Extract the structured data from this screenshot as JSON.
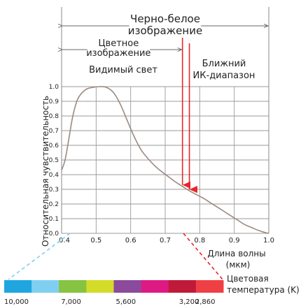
{
  "chart_data": {
    "type": "line",
    "xlabel": "Длина волны\n(мкм)",
    "ylabel": "Относительная чувствительность",
    "xlim": [
      0.4,
      1.0
    ],
    "ylim": [
      0.0,
      1.0
    ],
    "x_ticks": [
      "0.4",
      "0.5",
      "0.6",
      "0.7",
      "0.8",
      "0.9",
      "1.0"
    ],
    "y_ticks": [
      "0.0",
      "0.1",
      "0.2",
      "0.3",
      "0.4",
      "0.5",
      "0.6",
      "0.7",
      "0.8",
      "0.9",
      "1.0"
    ],
    "grid": true,
    "series": [
      {
        "x": [
          0.4,
          0.41,
          0.42,
          0.43,
          0.44,
          0.45,
          0.47,
          0.49,
          0.51,
          0.53,
          0.55,
          0.57,
          0.59,
          0.61,
          0.63,
          0.65,
          0.67,
          0.69,
          0.71,
          0.73,
          0.75,
          0.77,
          0.79,
          0.81,
          0.83,
          0.85,
          0.87,
          0.89,
          0.91,
          0.93,
          0.95,
          0.97,
          0.99,
          1.0
        ],
        "y": [
          0.43,
          0.5,
          0.63,
          0.77,
          0.87,
          0.93,
          0.98,
          0.995,
          1.0,
          0.995,
          0.96,
          0.88,
          0.77,
          0.66,
          0.57,
          0.51,
          0.46,
          0.42,
          0.385,
          0.35,
          0.32,
          0.29,
          0.265,
          0.24,
          0.21,
          0.18,
          0.15,
          0.12,
          0.09,
          0.06,
          0.04,
          0.02,
          0.005,
          0.0
        ]
      }
    ],
    "ranges": [
      {
        "label_lines": [
          "Черно-белое",
          "изображение"
        ],
        "from": 0.4,
        "to": 1.0
      },
      {
        "label_lines": [
          "Цветное",
          "изображение"
        ],
        "from": 0.4,
        "to": 0.75
      }
    ],
    "region_labels": {
      "visible": "Видимый свет",
      "near_ir": [
        "Ближний",
        "ИК-диапазон"
      ]
    },
    "markers": [
      {
        "x": 0.75,
        "color": "#e8252b"
      },
      {
        "x": 0.77,
        "color": "#e8252b"
      }
    ],
    "color_temperature": {
      "label_lines": [
        "Цветовая",
        "температура (K)"
      ],
      "colors": [
        "#1fa6e0",
        "#7fd0f0",
        "#86c341",
        "#d4dc2a",
        "#8b4a9c",
        "#dd1a84",
        "#c01a3a",
        "#ee4044"
      ],
      "tick_labels": [
        "10,000",
        "7,000",
        "5,600",
        "3,200",
        "2,860"
      ]
    }
  }
}
